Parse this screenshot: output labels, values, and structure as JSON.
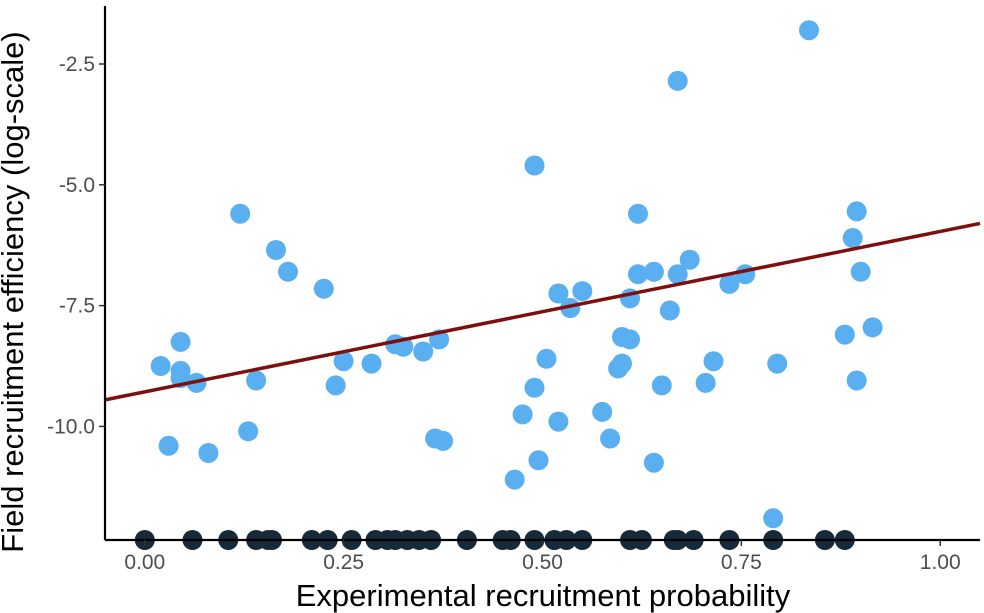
{
  "chart_data": {
    "type": "scatter",
    "title": "",
    "xlabel": "Experimental recruitment probability",
    "ylabel": "Field recruitment efficiency (log-scale)",
    "xlim": [
      -0.05,
      1.05
    ],
    "ylim": [
      -12.35,
      -1.3
    ],
    "x_ticks": [
      0.0,
      0.25,
      0.5,
      0.75,
      1.0
    ],
    "x_tick_labels": [
      "0.00",
      "0.25",
      "0.50",
      "0.75",
      "1.00"
    ],
    "y_ticks": [
      -2.5,
      -5.0,
      -7.5,
      -10.0
    ],
    "y_tick_labels": [
      "-2.5",
      "-5.0",
      "-7.5",
      "-10.0"
    ],
    "grid": false,
    "legend": "none",
    "colors": {
      "point": "#5aaff0",
      "zero_point": "#172a3a",
      "fit_line": "#7d0f0f",
      "axis": "#000000"
    },
    "series": [
      {
        "points": [
          [
            0.02,
            -8.75
          ],
          [
            0.03,
            -10.4
          ],
          [
            0.045,
            -8.25
          ],
          [
            0.045,
            -8.85
          ],
          [
            0.045,
            -9.0
          ],
          [
            0.065,
            -9.1
          ],
          [
            0.08,
            -10.55
          ],
          [
            0.12,
            -5.6
          ],
          [
            0.13,
            -10.1
          ],
          [
            0.14,
            -9.05
          ],
          [
            0.165,
            -6.35
          ],
          [
            0.18,
            -6.8
          ],
          [
            0.225,
            -7.15
          ],
          [
            0.24,
            -9.15
          ],
          [
            0.25,
            -8.65
          ],
          [
            0.285,
            -8.7
          ],
          [
            0.315,
            -8.3
          ],
          [
            0.325,
            -8.35
          ],
          [
            0.35,
            -8.45
          ],
          [
            0.365,
            -10.25
          ],
          [
            0.37,
            -8.2
          ],
          [
            0.375,
            -10.3
          ],
          [
            0.465,
            -11.1
          ],
          [
            0.475,
            -9.75
          ],
          [
            0.49,
            -9.2
          ],
          [
            0.49,
            -4.6
          ],
          [
            0.495,
            -10.7
          ],
          [
            0.505,
            -8.6
          ],
          [
            0.52,
            -7.25
          ],
          [
            0.52,
            -9.9
          ],
          [
            0.535,
            -7.55
          ],
          [
            0.55,
            -7.2
          ],
          [
            0.575,
            -9.7
          ],
          [
            0.585,
            -10.25
          ],
          [
            0.595,
            -8.8
          ],
          [
            0.6,
            -8.7
          ],
          [
            0.6,
            -8.15
          ],
          [
            0.61,
            -7.35
          ],
          [
            0.61,
            -8.2
          ],
          [
            0.62,
            -5.6
          ],
          [
            0.62,
            -6.85
          ],
          [
            0.64,
            -10.75
          ],
          [
            0.64,
            -6.8
          ],
          [
            0.65,
            -9.15
          ],
          [
            0.66,
            -7.6
          ],
          [
            0.67,
            -2.85
          ],
          [
            0.67,
            -6.85
          ],
          [
            0.685,
            -6.55
          ],
          [
            0.705,
            -9.1
          ],
          [
            0.715,
            -8.65
          ],
          [
            0.735,
            -7.05
          ],
          [
            0.755,
            -6.85
          ],
          [
            0.79,
            -11.9
          ],
          [
            0.795,
            -8.7
          ],
          [
            0.835,
            -1.8
          ],
          [
            0.88,
            -8.1
          ],
          [
            0.89,
            -6.1
          ],
          [
            0.895,
            -9.05
          ],
          [
            0.895,
            -5.55
          ],
          [
            0.9,
            -6.8
          ],
          [
            0.915,
            -7.95
          ]
        ]
      },
      {
        "points": [
          [
            0.0,
            -12.35
          ],
          [
            0.06,
            -12.35
          ],
          [
            0.105,
            -12.35
          ],
          [
            0.14,
            -12.35
          ],
          [
            0.155,
            -12.35
          ],
          [
            0.16,
            -12.35
          ],
          [
            0.21,
            -12.35
          ],
          [
            0.23,
            -12.35
          ],
          [
            0.26,
            -12.35
          ],
          [
            0.29,
            -12.35
          ],
          [
            0.305,
            -12.35
          ],
          [
            0.315,
            -12.35
          ],
          [
            0.33,
            -12.35
          ],
          [
            0.345,
            -12.35
          ],
          [
            0.36,
            -12.35
          ],
          [
            0.405,
            -12.35
          ],
          [
            0.45,
            -12.35
          ],
          [
            0.46,
            -12.35
          ],
          [
            0.49,
            -12.35
          ],
          [
            0.515,
            -12.35
          ],
          [
            0.53,
            -12.35
          ],
          [
            0.55,
            -12.35
          ],
          [
            0.61,
            -12.35
          ],
          [
            0.625,
            -12.35
          ],
          [
            0.665,
            -12.35
          ],
          [
            0.67,
            -12.35
          ],
          [
            0.69,
            -12.35
          ],
          [
            0.735,
            -12.35
          ],
          [
            0.79,
            -12.35
          ],
          [
            0.855,
            -12.35
          ],
          [
            0.88,
            -12.35
          ]
        ]
      }
    ],
    "fit_line": {
      "x": [
        -0.05,
        1.05
      ],
      "y": [
        -9.45,
        -5.8
      ]
    }
  }
}
